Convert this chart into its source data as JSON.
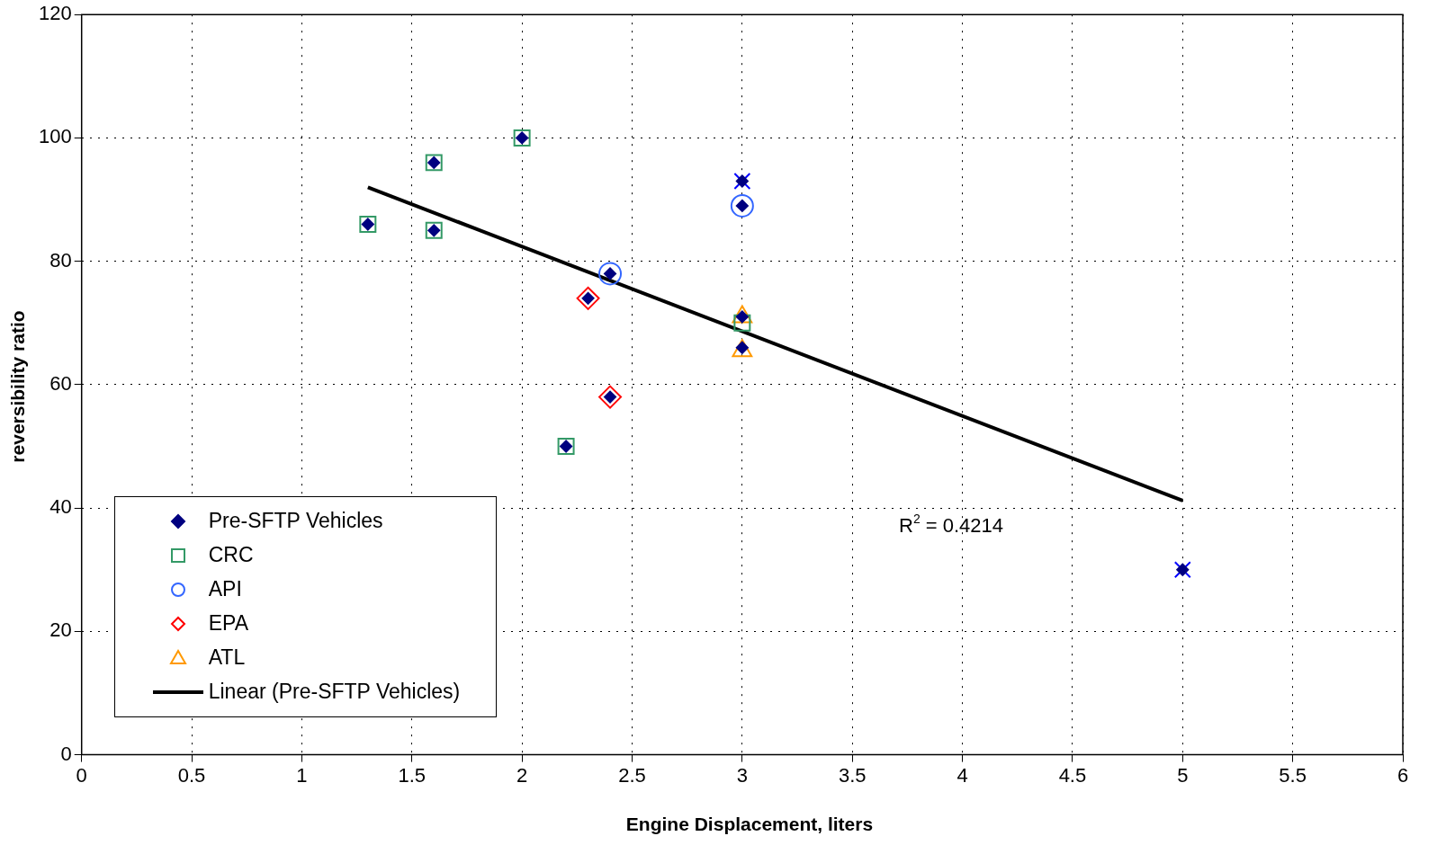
{
  "chart_data": {
    "type": "scatter",
    "xlabel": "Engine Displacement, liters",
    "ylabel": "reversibility ratio",
    "xlim": [
      0,
      6
    ],
    "xticks": [
      0,
      0.5,
      1,
      1.5,
      2,
      2.5,
      3,
      3.5,
      4,
      4.5,
      5,
      5.5,
      6
    ],
    "ylim": [
      0,
      120
    ],
    "yticks": [
      0,
      20,
      40,
      60,
      80,
      100,
      120
    ],
    "grid": true,
    "legend": "bottom left",
    "annotations": [
      "R$^{2}$ = 0.4214"
    ],
    "series": [
      {
        "name": "Pre-SFTP Vehicles",
        "color": "#000080",
        "marker": "diamond",
        "x": [
          1.3,
          1.6,
          1.6,
          2,
          2.2,
          2.3,
          2.4,
          2.4,
          3,
          3,
          3,
          3,
          5
        ],
        "values": [
          86,
          96,
          85,
          100,
          50,
          74,
          78,
          58,
          93,
          89,
          71,
          66,
          30
        ]
      },
      {
        "name": "CRC",
        "color": "#339966",
        "marker": "square",
        "x": [
          1.3,
          1.6,
          1.6,
          2,
          2.2,
          3
        ],
        "values": [
          86,
          96,
          85,
          100,
          50,
          70
        ]
      },
      {
        "name": "API",
        "color": "#3366ff",
        "marker": "circle",
        "x": [
          2.4,
          3
        ],
        "values": [
          78,
          89
        ]
      },
      {
        "name": "EPA",
        "color": "#ff0000",
        "marker": "diamond",
        "x": [
          2.3,
          2.4
        ],
        "values": [
          74,
          58
        ]
      },
      {
        "name": "ATL",
        "color": "#ff9900",
        "marker": "triangle",
        "x": [
          3,
          3
        ],
        "values": [
          71,
          65.5
        ]
      },
      {
        "color": "#0000ff",
        "marker": "cross",
        "x": [
          3,
          5
        ],
        "values": [
          93,
          30
        ]
      },
      {
        "name": "Linear (Pre-SFTP Vehicles)",
        "type": "line",
        "color": "#000000",
        "marker": "none",
        "line_style": "solid",
        "x": [
          1.3,
          5
        ],
        "values": [
          92,
          41.2
        ]
      }
    ]
  }
}
